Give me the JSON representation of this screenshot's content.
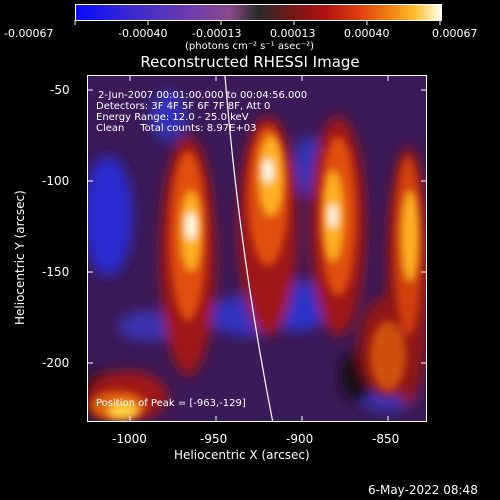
{
  "colorbar": {
    "tick_labels": [
      "-0.00067",
      "-0.00040",
      "-0.00013",
      "0.00013",
      "0.00040",
      "0.00067"
    ],
    "unit": "(photons cm⁻² s⁻¹ asec⁻²)"
  },
  "plot": {
    "title": "Reconstructed RHESSI Image",
    "info": {
      "time_range": "2-Jun-2007 00:01:00.000 to 00:04:56.000",
      "detectors": "Detectors: 3F 4F 5F 6F 7F 8F, Att 0",
      "energy": "Energy Range: 12.0 - 25.0 keV",
      "method": "Clean     Total counts: 8.97E+03"
    },
    "peak": "Position of Peak = [-963,-129]",
    "x_axis": {
      "label": "Heliocentric X (arcsec)",
      "range": [
        -1030,
        -835
      ],
      "ticks": [
        "-1000",
        "-950",
        "-900",
        "-850"
      ]
    },
    "y_axis": {
      "label": "Heliocentric Y (arcsec)",
      "range": [
        -233,
        -42
      ],
      "ticks": [
        "-50",
        "-100",
        "-150",
        "-200"
      ]
    }
  },
  "footer": {
    "timestamp": "6-May-2022 08:48"
  }
}
